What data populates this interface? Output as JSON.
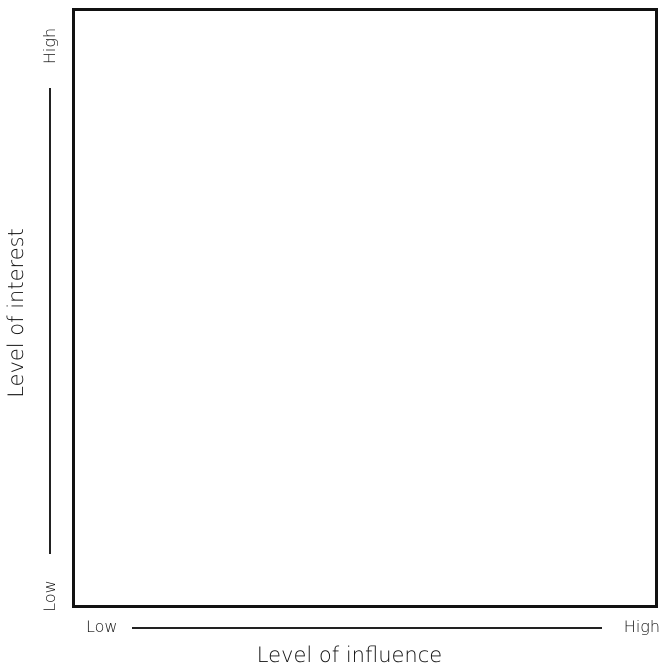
{
  "matrix": {
    "x_axis": {
      "low_label": "Low",
      "high_label": "High",
      "title": "Level of influence"
    },
    "y_axis": {
      "low_label": "Low",
      "high_label": "High",
      "title": "Level of interest"
    }
  },
  "colors": {
    "line": "#111111",
    "background": "#ffffff"
  }
}
